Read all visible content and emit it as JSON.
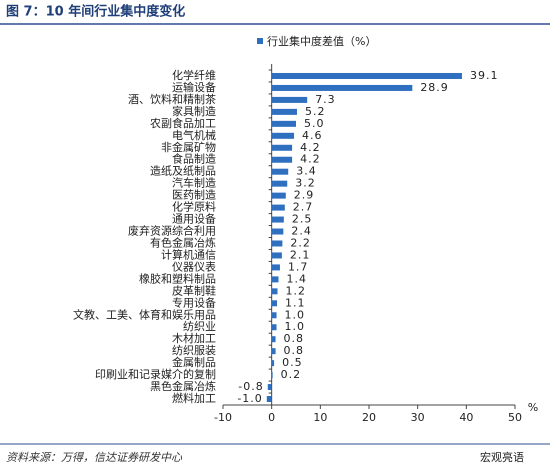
{
  "title": "图 7：10 年间行业集中度变化",
  "source": "资料来源：万得，信达证券研发中心",
  "watermark": "宏观亮语",
  "chart_data": {
    "type": "bar",
    "orientation": "horizontal",
    "categories": [
      "化学纤维",
      "运输设备",
      "酒、饮料和精制茶",
      "家具制造",
      "农副食品加工",
      "电气机械",
      "非金属矿物",
      "食品制造",
      "造纸及纸制品",
      "汽车制造",
      "医药制造",
      "化学原料",
      "通用设备",
      "废弃资源综合利用",
      "有色金属冶炼",
      "计算机通信",
      "仪器仪表",
      "橡胶和塑料制品",
      "皮革制鞋",
      "专用设备",
      "文教、工美、体育和娱乐用品",
      "纺织业",
      "木材加工",
      "纺织服装",
      "金属制品",
      "印刷业和记录媒介的复制",
      "黑色金属冶炼",
      "燃料加工"
    ],
    "series": [
      {
        "name": "行业集中度差值（%）",
        "color": "#2e6fc0",
        "values": [
          39.1,
          28.9,
          7.3,
          5.2,
          5.0,
          4.6,
          4.2,
          4.2,
          3.4,
          3.2,
          2.9,
          2.7,
          2.5,
          2.4,
          2.2,
          2.1,
          1.7,
          1.4,
          1.2,
          1.1,
          1.0,
          1.0,
          0.8,
          0.8,
          0.5,
          0.2,
          -0.8,
          -1.0
        ],
        "value_labels": [
          "39.1",
          "28.9",
          "7.3",
          "5.2",
          "5.0",
          "4.6",
          "4.2",
          "4.2",
          "3.4",
          "3.2",
          "2.9",
          "2.7",
          "2.5",
          "2.4",
          "2.2",
          "2.1",
          "1.7",
          "1.4",
          "1.2",
          "1.1",
          "1.0",
          "1.0",
          "0.8",
          "0.8",
          "0.5",
          "0.2",
          "-0.8",
          "-1.0"
        ]
      }
    ],
    "xlim": [
      -10,
      50
    ],
    "xticks": [
      -10,
      0,
      10,
      20,
      30,
      40,
      50
    ],
    "x_label": "%",
    "grid": false
  }
}
